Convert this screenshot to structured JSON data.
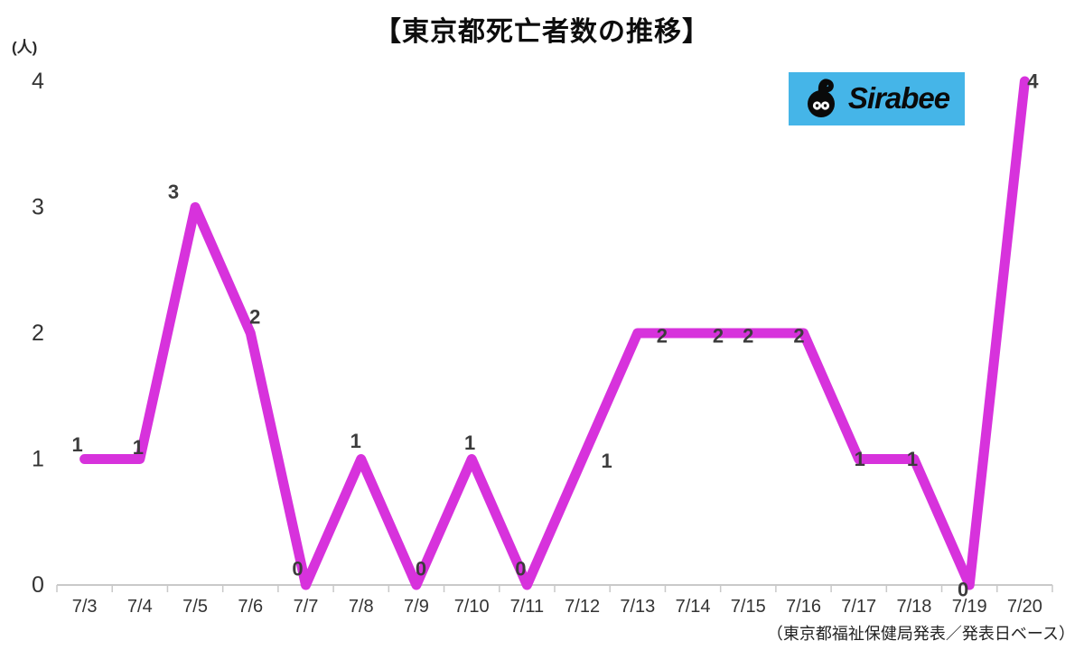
{
  "page": {
    "title": "【東京都死亡者数の推移】",
    "unit_label": "(人)",
    "source_note": "（東京都福祉保健局発表／発表日ベース）"
  },
  "logo": {
    "text": "Sirabee",
    "bg_color": "#45B5E8",
    "mascot": "sirabee-bee-mascot"
  },
  "chart_data": {
    "type": "line",
    "title": "【東京都死亡者数の推移】",
    "categories": [
      "7/3",
      "7/4",
      "7/5",
      "7/6",
      "7/7",
      "7/8",
      "7/9",
      "7/10",
      "7/11",
      "7/12",
      "7/13",
      "7/14",
      "7/15",
      "7/16",
      "7/17",
      "7/18",
      "7/19",
      "7/20"
    ],
    "values": [
      1,
      1,
      3,
      2,
      0,
      1,
      0,
      1,
      0,
      1,
      2,
      2,
      2,
      2,
      1,
      1,
      0,
      4
    ],
    "point_labels": [
      "1",
      "1",
      "3",
      "2",
      "0",
      "1",
      "0",
      "1",
      "0",
      "1",
      "2",
      "2",
      "2",
      "2",
      "1",
      "1",
      "0",
      "4"
    ],
    "ylabel": "(人)",
    "yticks": [
      0,
      1,
      2,
      3,
      4
    ],
    "ylim": [
      0,
      4
    ],
    "grid": false,
    "legend": "none",
    "line_color": "#D732DC",
    "point_label_color": "#3c3c3c",
    "axis_color": "#c9c9c9",
    "tick_label_color": "#333333"
  }
}
